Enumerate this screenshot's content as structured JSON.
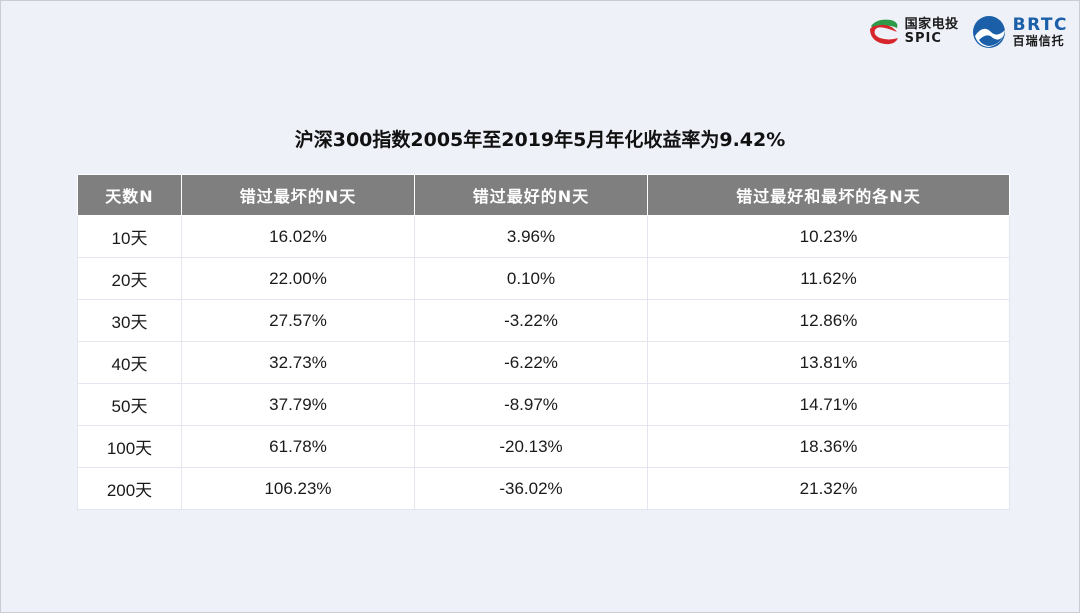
{
  "logos": {
    "spic": {
      "cn": "国家电投",
      "en": "SPIC"
    },
    "brtc": {
      "en": "BRTC",
      "cn": "百瑞信托"
    }
  },
  "title": "沪深300指数2005年至2019年5月年化收益率为9.42%",
  "table": {
    "headers": [
      "天数N",
      "错过最坏的N天",
      "错过最好的N天",
      "错过最好和最坏的各N天"
    ],
    "rows": [
      [
        "10天",
        "16.02%",
        "3.96%",
        "10.23%"
      ],
      [
        "20天",
        "22.00%",
        "0.10%",
        "11.62%"
      ],
      [
        "30天",
        "27.57%",
        "-3.22%",
        "12.86%"
      ],
      [
        "40天",
        "32.73%",
        "-6.22%",
        "13.81%"
      ],
      [
        "50天",
        "37.79%",
        "-8.97%",
        "14.71%"
      ],
      [
        "100天",
        "61.78%",
        "-20.13%",
        "18.36%"
      ],
      [
        "200天",
        "106.23%",
        "-36.02%",
        "21.32%"
      ]
    ]
  },
  "colors": {
    "background": "#eef1f8",
    "header_bg": "#7f7f7f",
    "spic_red": "#d7262b",
    "spic_green": "#2f9a4a",
    "brtc_blue": "#1a5fa8"
  }
}
